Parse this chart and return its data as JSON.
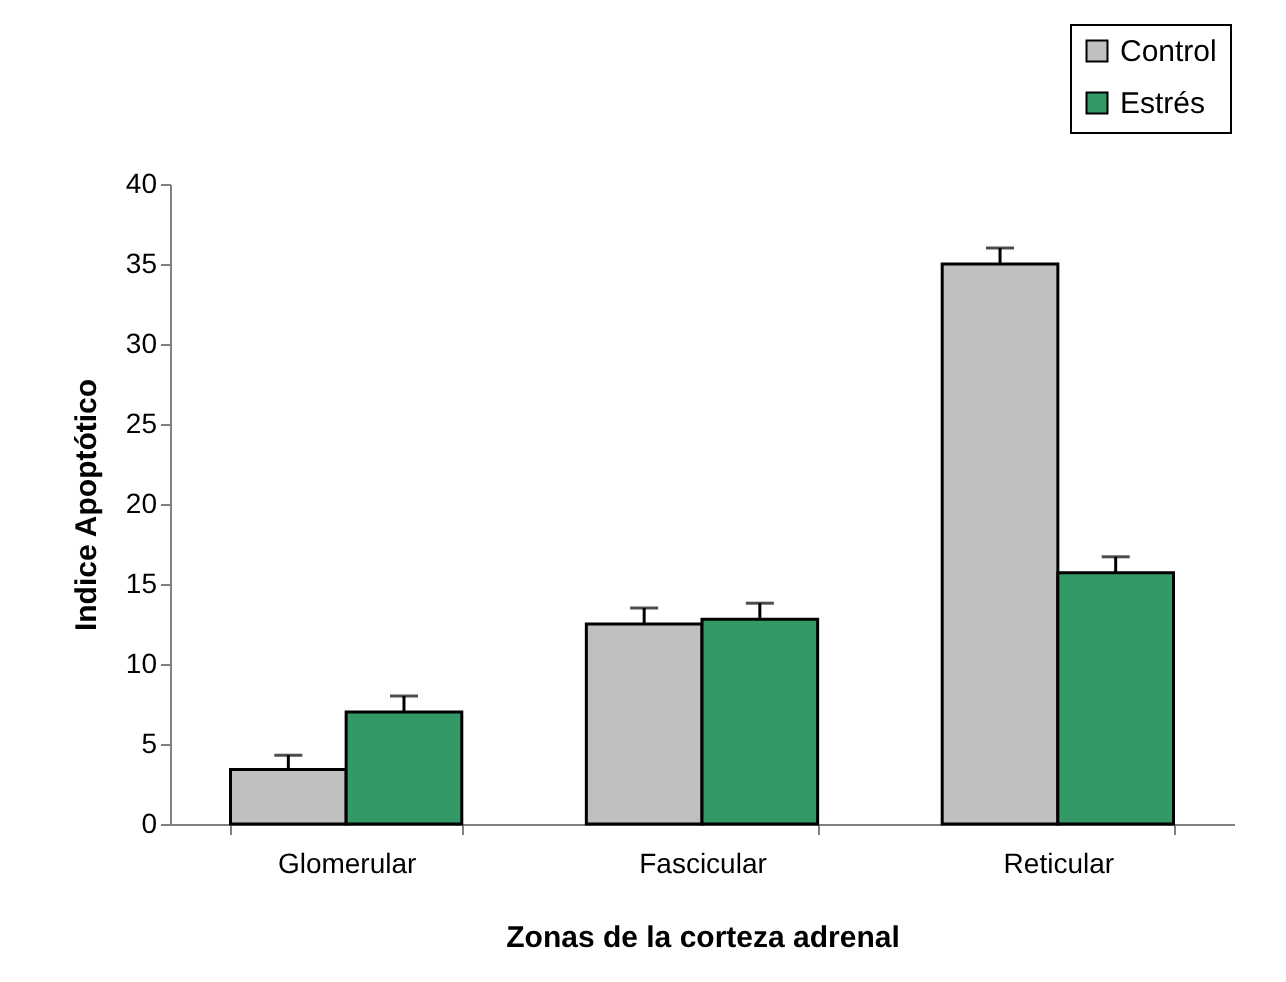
{
  "chart_data": {
    "type": "bar",
    "xlabel": "Zonas de la corteza adrenal",
    "ylabel": "Indice Apoptótico",
    "categories": [
      "Glomerular",
      "Fascicular",
      "Reticular"
    ],
    "series": [
      {
        "name": "Control",
        "color": "#c0c0c0",
        "values": [
          3.4,
          12.5,
          35.0
        ],
        "errors": [
          [
            3.4,
            4.3
          ],
          [
            12.5,
            13.5
          ],
          [
            35.0,
            36.0
          ]
        ]
      },
      {
        "name": "Estrés",
        "color": "#339966",
        "values": [
          7.0,
          12.8,
          15.7
        ],
        "errors": [
          [
            7.0,
            8.0
          ],
          [
            12.8,
            13.8
          ],
          [
            15.7,
            16.7
          ]
        ]
      }
    ],
    "ylim": [
      0,
      40
    ],
    "yticks": [
      0,
      5,
      10,
      15,
      20,
      25,
      30,
      35,
      40
    ],
    "grid": false,
    "legend": "top right"
  }
}
